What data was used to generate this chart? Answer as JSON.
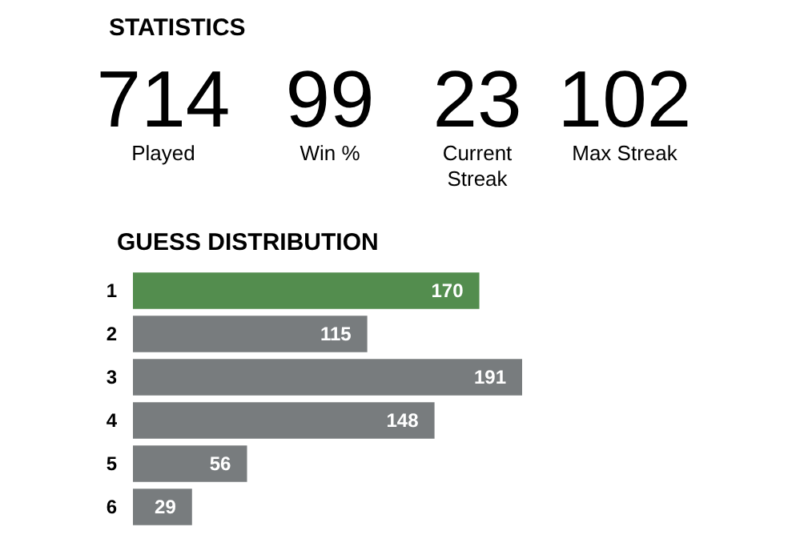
{
  "chart_data": [
    {
      "type": "other",
      "title": "STATISTICS",
      "categories": [
        "Played",
        "Win %",
        "Current Streak",
        "Max Streak"
      ],
      "values": [
        714,
        99,
        23,
        102
      ],
      "data_labels": true
    },
    {
      "type": "bar",
      "title": "GUESS DISTRIBUTION",
      "orientation": "horizontal",
      "categories": [
        "1",
        "2",
        "3",
        "4",
        "5",
        "6"
      ],
      "values": [
        170,
        115,
        191,
        148,
        56,
        29
      ],
      "colors": [
        "#538d4e",
        "#787c7e",
        "#787c7e",
        "#787c7e",
        "#787c7e",
        "#787c7e"
      ],
      "data_labels": true
    }
  ]
}
